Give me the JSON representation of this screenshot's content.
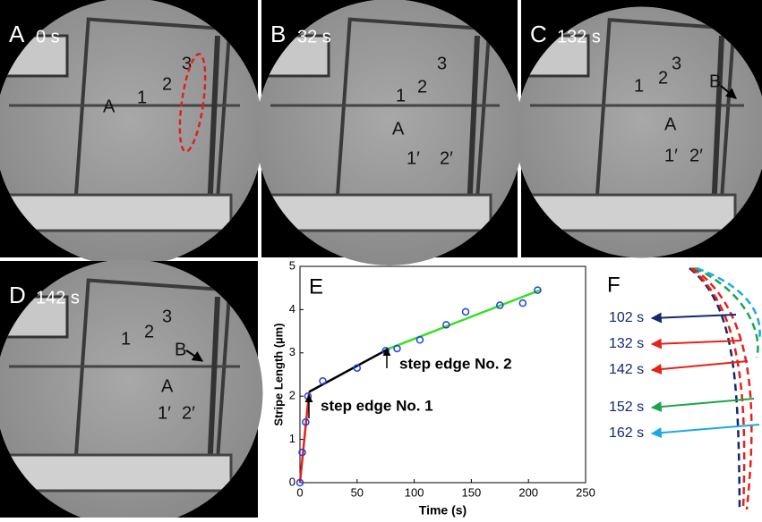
{
  "panels": [
    {
      "label": "A",
      "time": "0 s",
      "annotations": [
        "A",
        "1",
        "2",
        "3"
      ]
    },
    {
      "label": "B",
      "time": "32 s",
      "annotations": [
        "3",
        "2",
        "1",
        "A",
        "1′",
        "2′"
      ]
    },
    {
      "label": "C",
      "time": "132 s",
      "annotations": [
        "1",
        "2",
        "3",
        "B",
        "A",
        "1′",
        "2′"
      ]
    },
    {
      "label": "D",
      "time": "142 s",
      "annotations": [
        "1",
        "2",
        "3",
        "B",
        "A",
        "1′",
        "2′"
      ]
    }
  ],
  "chart_data": {
    "type": "scatter",
    "label": "E",
    "xlabel": "Time (s)",
    "ylabel": "Stripe Length (µm)",
    "xlim": [
      0,
      250
    ],
    "ylim": [
      0,
      5
    ],
    "xticks": [
      0,
      50,
      100,
      150,
      200,
      250
    ],
    "yticks": [
      0,
      1,
      2,
      3,
      4,
      5
    ],
    "series": [
      {
        "style": "points",
        "color": "#1f3fe6",
        "x": [
          0,
          2,
          5,
          7,
          20,
          50,
          75,
          85,
          105,
          128,
          145,
          175,
          195,
          208
        ],
        "values": [
          0,
          0.7,
          1.4,
          2.0,
          2.35,
          2.65,
          3.05,
          3.1,
          3.3,
          3.65,
          3.95,
          4.1,
          4.15,
          4.45
        ]
      },
      {
        "style": "line",
        "color": "#e8201a",
        "x": [
          0,
          8
        ],
        "values": [
          0,
          2.1
        ]
      },
      {
        "style": "line",
        "color": "#000000",
        "x": [
          8,
          78
        ],
        "values": [
          2.1,
          3.1
        ]
      },
      {
        "style": "line",
        "color": "#36e01e",
        "x": [
          78,
          210
        ],
        "values": [
          3.1,
          4.45
        ]
      }
    ],
    "annotations": [
      "step edge No. 1",
      "step edge No. 2"
    ]
  },
  "panel_f": {
    "label": "F",
    "times": [
      "102 s",
      "132 s",
      "142 s",
      "152 s",
      "162 s"
    ],
    "colors": [
      "#14286e",
      "#e8201a",
      "#e8201a",
      "#1aa64a",
      "#1aa8e8"
    ]
  }
}
